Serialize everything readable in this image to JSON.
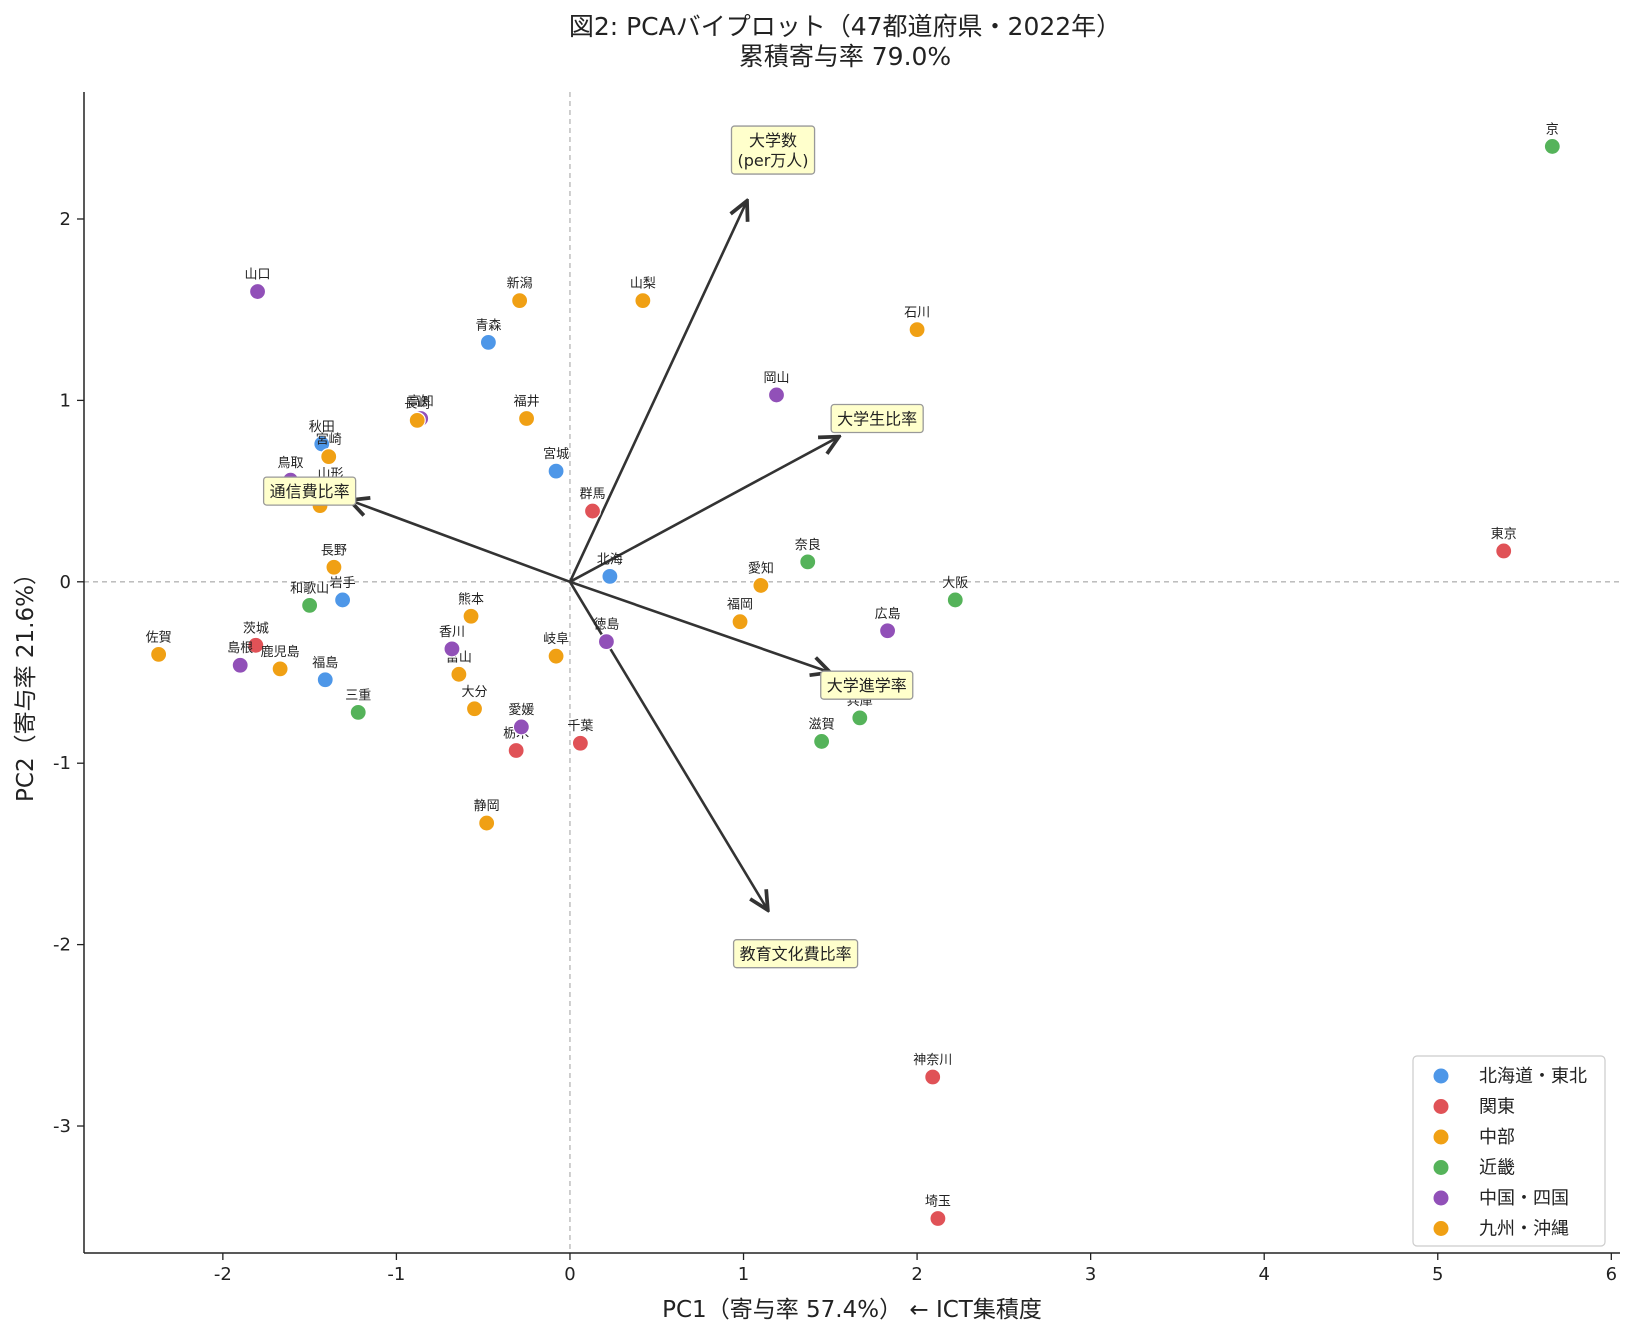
{
  "chart_data": {
    "type": "scatter",
    "title_line1": "図2: PCAバイプロット（47都道府県・2022年）",
    "title_line2": "累積寄与率 79.0%",
    "xlabel": "PC1（寄与率 57.4%） ← ICT集積度",
    "ylabel": "PC2（寄与率 21.6%）",
    "xlim": [
      -2.8,
      6.05
    ],
    "ylim": [
      -3.7,
      2.7
    ],
    "x_ticks": [
      -2,
      -1,
      0,
      1,
      2,
      3,
      4,
      5,
      6
    ],
    "y_ticks": [
      -3,
      -2,
      -1,
      0,
      1,
      2
    ],
    "reference_lines": {
      "x": 0,
      "y": 0,
      "style": "dashed"
    },
    "legend_position": "lower-right",
    "series": [
      {
        "name": "北海道・東北",
        "color": "#4e97e8",
        "points": [
          {
            "label": "青森",
            "x": -0.47,
            "y": 1.32
          },
          {
            "label": "秋田",
            "x": -1.43,
            "y": 0.76
          },
          {
            "label": "宮城",
            "x": -0.08,
            "y": 0.61
          },
          {
            "label": "山形",
            "x": -1.38,
            "y": 0.5
          },
          {
            "label": "北海",
            "x": 0.23,
            "y": 0.03
          },
          {
            "label": "岩手",
            "x": -1.31,
            "y": -0.1
          },
          {
            "label": "福島",
            "x": -1.41,
            "y": -0.54
          }
        ]
      },
      {
        "name": "関東",
        "color": "#e05257",
        "points": [
          {
            "label": "群馬",
            "x": 0.13,
            "y": 0.39
          },
          {
            "label": "東京",
            "x": 5.38,
            "y": 0.17
          },
          {
            "label": "茨城",
            "x": -1.81,
            "y": -0.35
          },
          {
            "label": "千葉",
            "x": 0.06,
            "y": -0.89
          },
          {
            "label": "栃木",
            "x": -0.31,
            "y": -0.93
          },
          {
            "label": "神奈川",
            "x": 2.09,
            "y": -2.73
          },
          {
            "label": "埼玉",
            "x": 2.12,
            "y": -3.51
          }
        ]
      },
      {
        "name": "中部",
        "color": "#f0a014",
        "points": [
          {
            "label": "新潟",
            "x": -0.29,
            "y": 1.55
          },
          {
            "label": "山梨",
            "x": 0.42,
            "y": 1.55
          },
          {
            "label": "石川",
            "x": 2.0,
            "y": 1.39
          },
          {
            "label": "福井",
            "x": -0.25,
            "y": 0.9
          },
          {
            "label": "長野",
            "x": -1.36,
            "y": 0.08
          },
          {
            "label": "愛知",
            "x": 1.1,
            "y": -0.02
          },
          {
            "label": "岐阜",
            "x": -0.08,
            "y": -0.41
          },
          {
            "label": "富山",
            "x": -0.64,
            "y": -0.51
          },
          {
            "label": "静岡",
            "x": -0.48,
            "y": -1.33
          }
        ]
      },
      {
        "name": "近畿",
        "color": "#55b35a",
        "points": [
          {
            "label": "京",
            "x": 5.66,
            "y": 2.4
          },
          {
            "label": "奈良",
            "x": 1.37,
            "y": 0.11
          },
          {
            "label": "大阪",
            "x": 2.22,
            "y": -0.1
          },
          {
            "label": "和歌山",
            "x": -1.5,
            "y": -0.13
          },
          {
            "label": "兵庫",
            "x": 1.67,
            "y": -0.75
          },
          {
            "label": "滋賀",
            "x": 1.45,
            "y": -0.88
          },
          {
            "label": "三重",
            "x": -1.22,
            "y": -0.72
          }
        ]
      },
      {
        "name": "中国・四国",
        "color": "#9150b8",
        "points": [
          {
            "label": "山口",
            "x": -1.8,
            "y": 1.6
          },
          {
            "label": "岡山",
            "x": 1.19,
            "y": 1.03
          },
          {
            "label": "高知",
            "x": -0.86,
            "y": 0.9
          },
          {
            "label": "鳥取",
            "x": -1.61,
            "y": 0.56
          },
          {
            "label": "徳島",
            "x": 0.21,
            "y": -0.33
          },
          {
            "label": "広島",
            "x": 1.83,
            "y": -0.27
          },
          {
            "label": "香川",
            "x": -0.68,
            "y": -0.37
          },
          {
            "label": "島根",
            "x": -1.9,
            "y": -0.46
          },
          {
            "label": "愛媛",
            "x": -0.28,
            "y": -0.8
          }
        ]
      },
      {
        "name": "九州・沖縄",
        "color": "#f0a014",
        "points": [
          {
            "label": "長崎",
            "x": -0.88,
            "y": 0.89
          },
          {
            "label": "宮崎",
            "x": -1.39,
            "y": 0.69
          },
          {
            "label": "沖縄",
            "x": -1.44,
            "y": 0.42
          },
          {
            "label": "熊本",
            "x": -0.57,
            "y": -0.19
          },
          {
            "label": "福岡",
            "x": 0.98,
            "y": -0.22
          },
          {
            "label": "佐賀",
            "x": -2.37,
            "y": -0.4
          },
          {
            "label": "鹿児島",
            "x": -1.67,
            "y": -0.48
          },
          {
            "label": "大分",
            "x": -0.55,
            "y": -0.7
          }
        ]
      }
    ],
    "loadings": [
      {
        "label": "大学数\n(per万人)",
        "x": 1.02,
        "y": 2.1
      },
      {
        "label": "大学生比率",
        "x": 1.55,
        "y": 0.8
      },
      {
        "label": "通信費比率",
        "x": -1.27,
        "y": 0.45
      },
      {
        "label": "大学進学率",
        "x": 1.5,
        "y": -0.5
      },
      {
        "label": "教育文化費比率",
        "x": 1.14,
        "y": -1.81
      }
    ],
    "loading_label_positions": [
      {
        "x": 1.17,
        "y": 2.38
      },
      {
        "x": 1.77,
        "y": 0.9
      },
      {
        "x": -1.5,
        "y": 0.5
      },
      {
        "x": 1.71,
        "y": -0.57
      },
      {
        "x": 1.3,
        "y": -2.05
      }
    ]
  }
}
